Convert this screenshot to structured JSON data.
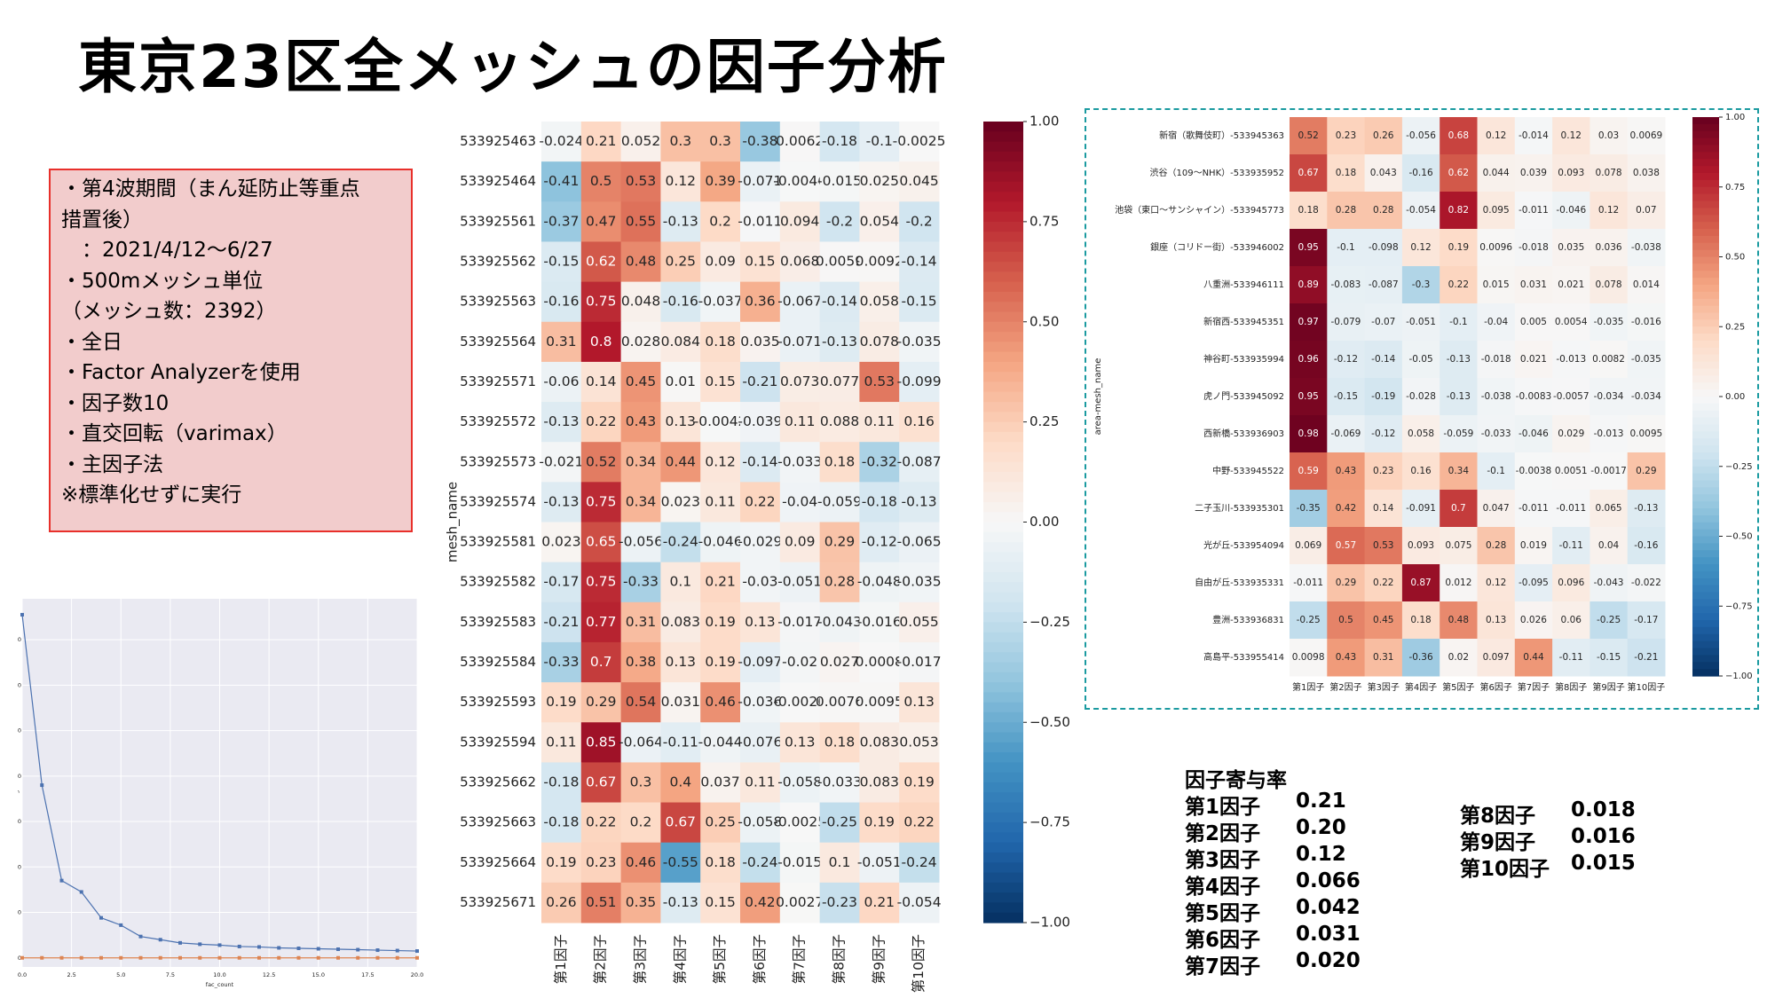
{
  "title": "東京23区全メッシュの因子分析",
  "info_box": [
    "・第4波期間（まん延防止等重点",
    "措置後）",
    "　：2021/4/12〜6/27",
    "・500mメッシュ単位",
    "（メッシュ数：2392）",
    "・全日",
    "・Factor Analyzerを使用",
    "・因子数10",
    "・直交回転（varimax）",
    "・主因子法",
    "",
    "※標準化せずに実行"
  ],
  "contribution": {
    "heading": "因子寄与率",
    "items": [
      {
        "label": "第1因子",
        "value": "0.21"
      },
      {
        "label": "第2因子",
        "value": "0.20"
      },
      {
        "label": "第3因子",
        "value": "0.12"
      },
      {
        "label": "第4因子",
        "value": "0.066"
      },
      {
        "label": "第5因子",
        "value": "0.042"
      },
      {
        "label": "第6因子",
        "value": "0.031"
      },
      {
        "label": "第7因子",
        "value": "0.020"
      },
      {
        "label": "第8因子",
        "value": "0.018"
      },
      {
        "label": "第9因子",
        "value": "0.016"
      },
      {
        "label": "第10因子",
        "value": "0.015"
      }
    ]
  },
  "chart_data": [
    {
      "type": "line",
      "xlabel": "fac_count",
      "ylabel": "eigenvalue",
      "xlim": [
        0,
        20
      ],
      "ylim": [
        -20,
        790
      ],
      "x_ticks": [
        "0.0",
        "2.5",
        "5.0",
        "7.5",
        "10.0",
        "12.5",
        "15.0",
        "17.5",
        "20.0"
      ],
      "y_ticks": [
        "0",
        "100",
        "200",
        "300",
        "400",
        "500",
        "600",
        "700"
      ],
      "grid": true,
      "series": [
        {
          "color": "#4c72b0",
          "x": [
            0,
            1,
            2,
            3,
            4,
            5,
            6,
            7,
            8,
            9,
            10,
            11,
            12,
            13,
            14,
            15,
            16,
            17,
            18,
            19,
            20
          ],
          "values": [
            755,
            380,
            170,
            145,
            88,
            72,
            47,
            40,
            33,
            30,
            28,
            25,
            24,
            22,
            21,
            20,
            19,
            18,
            17,
            16,
            15
          ]
        },
        {
          "color": "#dd8452",
          "x": [
            0,
            1,
            2,
            3,
            4,
            5,
            6,
            7,
            8,
            9,
            10,
            11,
            12,
            13,
            14,
            15,
            16,
            17,
            18,
            19,
            20
          ],
          "values": [
            0,
            0,
            0,
            0,
            0,
            0,
            0,
            0,
            0,
            0,
            0,
            0,
            0,
            0,
            0,
            0,
            0,
            0,
            0,
            0,
            0
          ]
        }
      ]
    },
    {
      "type": "heatmap",
      "ylabel": "mesh_name",
      "columns": [
        "第1因子",
        "第2因子",
        "第3因子",
        "第4因子",
        "第5因子",
        "第6因子",
        "第7因子",
        "第8因子",
        "第9因子",
        "第10因子"
      ],
      "rows": [
        "533925463",
        "533925464",
        "533925561",
        "533925562",
        "533925563",
        "533925564",
        "533925571",
        "533925572",
        "533925573",
        "533925574",
        "533925581",
        "533925582",
        "533925583",
        "533925584",
        "533925593",
        "533925594",
        "533925662",
        "533925663",
        "533925664",
        "533925671"
      ],
      "values": [
        [
          -0.024,
          0.21,
          0.052,
          0.3,
          0.3,
          -0.38,
          0.0062,
          -0.18,
          -0.1,
          -0.0025
        ],
        [
          -0.41,
          0.5,
          0.53,
          0.12,
          0.39,
          -0.071,
          -0.0046,
          -0.015,
          0.025,
          0.045
        ],
        [
          -0.37,
          0.47,
          0.55,
          -0.13,
          0.2,
          -0.011,
          0.094,
          -0.2,
          0.054,
          -0.2
        ],
        [
          -0.15,
          0.62,
          0.48,
          0.25,
          0.09,
          0.15,
          0.068,
          0.0059,
          0.0092,
          -0.14
        ],
        [
          -0.16,
          0.75,
          0.048,
          -0.16,
          -0.037,
          0.36,
          -0.067,
          -0.14,
          0.058,
          -0.15
        ],
        [
          0.31,
          0.8,
          0.028,
          0.084,
          0.18,
          0.035,
          -0.071,
          -0.13,
          0.078,
          -0.035
        ],
        [
          -0.06,
          0.14,
          0.45,
          0.01,
          0.15,
          -0.21,
          0.073,
          0.077,
          0.53,
          -0.099
        ],
        [
          -0.13,
          0.22,
          0.43,
          0.13,
          -0.0042,
          -0.039,
          0.11,
          0.088,
          0.11,
          0.16
        ],
        [
          -0.021,
          0.52,
          0.34,
          0.44,
          0.12,
          -0.14,
          -0.033,
          0.18,
          -0.32,
          -0.087
        ],
        [
          -0.13,
          0.75,
          0.34,
          0.023,
          0.11,
          0.22,
          -0.04,
          -0.059,
          -0.18,
          -0.13
        ],
        [
          0.023,
          0.65,
          -0.056,
          -0.24,
          -0.046,
          -0.029,
          0.09,
          0.29,
          -0.12,
          -0.065
        ],
        [
          -0.17,
          0.75,
          -0.33,
          0.1,
          0.21,
          -0.03,
          -0.051,
          0.28,
          -0.048,
          -0.035
        ],
        [
          -0.21,
          0.77,
          0.31,
          0.083,
          0.19,
          0.13,
          -0.017,
          -0.043,
          -0.016,
          0.055
        ],
        [
          -0.33,
          0.7,
          0.38,
          0.13,
          0.19,
          -0.097,
          -0.02,
          0.027,
          0.0008,
          -0.017
        ],
        [
          0.19,
          0.29,
          0.54,
          0.031,
          0.46,
          -0.036,
          -0.0026,
          0.0076,
          0.0095,
          0.13
        ],
        [
          0.11,
          0.85,
          -0.064,
          -0.11,
          -0.044,
          -0.076,
          0.13,
          0.18,
          0.083,
          0.053
        ],
        [
          -0.18,
          0.67,
          0.3,
          0.4,
          0.037,
          0.11,
          -0.058,
          -0.033,
          0.083,
          0.19
        ],
        [
          -0.18,
          0.22,
          0.2,
          0.67,
          0.25,
          -0.058,
          -0.0025,
          -0.25,
          0.19,
          0.22
        ],
        [
          0.19,
          0.23,
          0.46,
          -0.55,
          0.18,
          -0.24,
          -0.015,
          0.1,
          -0.051,
          -0.24
        ],
        [
          0.26,
          0.51,
          0.35,
          -0.13,
          0.15,
          0.42,
          0.0027,
          -0.23,
          0.21,
          -0.054
        ]
      ],
      "labels": [
        [
          "-0.024",
          "0.21",
          "0.052",
          "0.3",
          "0.3",
          "-0.38",
          "0.0062",
          "-0.18",
          "-0.1",
          "-0.0025"
        ],
        [
          "-0.41",
          "0.5",
          "0.53",
          "0.12",
          "0.39",
          "-0.071",
          "-0.0046",
          "-0.015",
          "0.025",
          "0.045"
        ],
        [
          "-0.37",
          "0.47",
          "0.55",
          "-0.13",
          "0.2",
          "-0.011",
          "0.094",
          "-0.2",
          "0.054",
          "-0.2"
        ],
        [
          "-0.15",
          "0.62",
          "0.48",
          "0.25",
          "0.09",
          "0.15",
          "0.068",
          "0.0059",
          "0.0092",
          "-0.14"
        ],
        [
          "-0.16",
          "0.75",
          "0.048",
          "-0.16",
          "-0.037",
          "0.36",
          "-0.067",
          "-0.14",
          "0.058",
          "-0.15"
        ],
        [
          "0.31",
          "0.8",
          "0.028",
          "0.084",
          "0.18",
          "0.035",
          "-0.071",
          "-0.13",
          "0.078",
          "-0.035"
        ],
        [
          "-0.06",
          "0.14",
          "0.45",
          "0.01",
          "0.15",
          "-0.21",
          "0.073",
          "0.077",
          "0.53",
          "-0.099"
        ],
        [
          "-0.13",
          "0.22",
          "0.43",
          "0.13",
          "-0.0042",
          "-0.039",
          "0.11",
          "0.088",
          "0.11",
          "0.16"
        ],
        [
          "-0.021",
          "0.52",
          "0.34",
          "0.44",
          "0.12",
          "-0.14",
          "-0.033",
          "0.18",
          "-0.32",
          "-0.087"
        ],
        [
          "-0.13",
          "0.75",
          "0.34",
          "0.023",
          "0.11",
          "0.22",
          "-0.04",
          "-0.059",
          "-0.18",
          "-0.13"
        ],
        [
          "0.023",
          "0.65",
          "-0.056",
          "-0.24",
          "-0.046",
          "-0.029",
          "0.09",
          "0.29",
          "-0.12",
          "-0.065"
        ],
        [
          "-0.17",
          "0.75",
          "-0.33",
          "0.1",
          "0.21",
          "-0.03",
          "-0.051",
          "0.28",
          "-0.048",
          "-0.035"
        ],
        [
          "-0.21",
          "0.77",
          "0.31",
          "0.083",
          "0.19",
          "0.13",
          "-0.017",
          "-0.043",
          "-0.016",
          "0.055"
        ],
        [
          "-0.33",
          "0.7",
          "0.38",
          "0.13",
          "0.19",
          "-0.097",
          "-0.02",
          "0.027",
          "0.0008",
          "-0.017"
        ],
        [
          "0.19",
          "0.29",
          "0.54",
          "0.031",
          "0.46",
          "-0.036",
          "-0.0026",
          "0.0076",
          "0.0095",
          "0.13"
        ],
        [
          "0.11",
          "0.85",
          "-0.064",
          "-0.11",
          "-0.044",
          "-0.076",
          "0.13",
          "0.18",
          "0.083",
          "0.053"
        ],
        [
          "-0.18",
          "0.67",
          "0.3",
          "0.4",
          "0.037",
          "0.11",
          "-0.058",
          "-0.033",
          "0.083",
          "0.19"
        ],
        [
          "-0.18",
          "0.22",
          "0.2",
          "0.67",
          "0.25",
          "-0.058",
          "-0.0025",
          "-0.25",
          "0.19",
          "0.22"
        ],
        [
          "0.19",
          "0.23",
          "0.46",
          "-0.55",
          "0.18",
          "-0.24",
          "-0.015",
          "0.1",
          "-0.051",
          "-0.24"
        ],
        [
          "0.26",
          "0.51",
          "0.35",
          "-0.13",
          "0.15",
          "0.42",
          "0.0027",
          "-0.23",
          "0.21",
          "-0.054"
        ]
      ],
      "vmin": -1.0,
      "vmax": 1.0,
      "colorbar_ticks": [
        "1.00",
        "0.75",
        "0.50",
        "0.25",
        "0.00",
        "−0.25",
        "−0.50",
        "−0.75",
        "−1.00"
      ],
      "colormap": "RdBu_r"
    },
    {
      "type": "heatmap",
      "ylabel": "area-mesh_name",
      "columns": [
        "第1因子",
        "第2因子",
        "第3因子",
        "第4因子",
        "第5因子",
        "第6因子",
        "第7因子",
        "第8因子",
        "第9因子",
        "第10因子"
      ],
      "rows": [
        "新宿（歌舞伎町）-533945363",
        "渋谷（109〜NHK）-533935952",
        "池袋（東口〜サンシャイン）-533945773",
        "銀座（コリドー街）-533946002",
        "八重洲-533946111",
        "新宿西-533945351",
        "神谷町-533935994",
        "虎ノ門-533945092",
        "西新橋-533936903",
        "中野-533945522",
        "二子玉川-533935301",
        "光が丘-533954094",
        "自由が丘-533935331",
        "豊洲-533936831",
        "高島平-533955414"
      ],
      "values": [
        [
          0.52,
          0.23,
          0.26,
          -0.056,
          0.68,
          0.12,
          -0.014,
          0.12,
          0.03,
          0.0069
        ],
        [
          0.67,
          0.18,
          0.043,
          -0.16,
          0.62,
          0.044,
          0.039,
          0.093,
          0.078,
          0.038
        ],
        [
          0.18,
          0.28,
          0.28,
          -0.054,
          0.82,
          0.095,
          -0.011,
          -0.046,
          0.12,
          0.07
        ],
        [
          0.95,
          -0.1,
          -0.098,
          0.12,
          0.19,
          0.0096,
          -0.018,
          0.035,
          0.036,
          -0.038
        ],
        [
          0.89,
          -0.083,
          -0.087,
          -0.3,
          0.22,
          0.015,
          0.031,
          0.021,
          0.078,
          0.014
        ],
        [
          0.97,
          -0.079,
          -0.07,
          -0.051,
          -0.1,
          -0.04,
          0.005,
          0.0054,
          -0.035,
          -0.016
        ],
        [
          0.96,
          -0.12,
          -0.14,
          -0.05,
          -0.13,
          -0.018,
          0.021,
          -0.013,
          0.0082,
          -0.035
        ],
        [
          0.95,
          -0.15,
          -0.19,
          -0.028,
          -0.13,
          -0.038,
          -0.0083,
          -0.0057,
          -0.034,
          -0.034
        ],
        [
          0.98,
          -0.069,
          -0.12,
          0.058,
          -0.059,
          -0.033,
          -0.046,
          0.029,
          -0.013,
          0.0095
        ],
        [
          0.59,
          0.43,
          0.23,
          0.16,
          0.34,
          -0.1,
          -0.0038,
          0.0051,
          -0.0017,
          0.29
        ],
        [
          -0.35,
          0.42,
          0.14,
          -0.091,
          0.7,
          0.047,
          -0.011,
          -0.011,
          0.065,
          -0.13
        ],
        [
          0.069,
          0.57,
          0.53,
          0.093,
          0.075,
          0.28,
          0.019,
          -0.11,
          0.04,
          -0.16
        ],
        [
          -0.011,
          0.29,
          0.22,
          0.87,
          0.012,
          0.12,
          -0.095,
          0.096,
          -0.043,
          -0.022
        ],
        [
          -0.25,
          0.5,
          0.45,
          0.18,
          0.48,
          0.13,
          0.026,
          0.06,
          -0.25,
          -0.17
        ],
        [
          0.0098,
          0.43,
          0.31,
          -0.36,
          0.02,
          0.097,
          0.44,
          -0.11,
          -0.15,
          -0.21
        ]
      ],
      "labels": [
        [
          "0.52",
          "0.23",
          "0.26",
          "-0.056",
          "0.68",
          "0.12",
          "-0.014",
          "0.12",
          "0.03",
          "0.0069"
        ],
        [
          "0.67",
          "0.18",
          "0.043",
          "-0.16",
          "0.62",
          "0.044",
          "0.039",
          "0.093",
          "0.078",
          "0.038"
        ],
        [
          "0.18",
          "0.28",
          "0.28",
          "-0.054",
          "0.82",
          "0.095",
          "-0.011",
          "-0.046",
          "0.12",
          "0.07"
        ],
        [
          "0.95",
          "-0.1",
          "-0.098",
          "0.12",
          "0.19",
          "0.0096",
          "-0.018",
          "0.035",
          "0.036",
          "-0.038"
        ],
        [
          "0.89",
          "-0.083",
          "-0.087",
          "-0.3",
          "0.22",
          "0.015",
          "0.031",
          "0.021",
          "0.078",
          "0.014"
        ],
        [
          "0.97",
          "-0.079",
          "-0.07",
          "-0.051",
          "-0.1",
          "-0.04",
          "0.005",
          "0.0054",
          "-0.035",
          "-0.016"
        ],
        [
          "0.96",
          "-0.12",
          "-0.14",
          "-0.05",
          "-0.13",
          "-0.018",
          "0.021",
          "-0.013",
          "0.0082",
          "-0.035"
        ],
        [
          "0.95",
          "-0.15",
          "-0.19",
          "-0.028",
          "-0.13",
          "-0.038",
          "-0.0083",
          "-0.0057",
          "-0.034",
          "-0.034"
        ],
        [
          "0.98",
          "-0.069",
          "-0.12",
          "0.058",
          "-0.059",
          "-0.033",
          "-0.046",
          "0.029",
          "-0.013",
          "0.0095"
        ],
        [
          "0.59",
          "0.43",
          "0.23",
          "0.16",
          "0.34",
          "-0.1",
          "-0.0038",
          "0.0051",
          "-0.0017",
          "0.29"
        ],
        [
          "-0.35",
          "0.42",
          "0.14",
          "-0.091",
          "0.7",
          "0.047",
          "-0.011",
          "-0.011",
          "0.065",
          "-0.13"
        ],
        [
          "0.069",
          "0.57",
          "0.53",
          "0.093",
          "0.075",
          "0.28",
          "0.019",
          "-0.11",
          "0.04",
          "-0.16"
        ],
        [
          "-0.011",
          "0.29",
          "0.22",
          "0.87",
          "0.012",
          "0.12",
          "-0.095",
          "0.096",
          "-0.043",
          "-0.022"
        ],
        [
          "-0.25",
          "0.5",
          "0.45",
          "0.18",
          "0.48",
          "0.13",
          "0.026",
          "0.06",
          "-0.25",
          "-0.17"
        ],
        [
          "0.0098",
          "0.43",
          "0.31",
          "-0.36",
          "0.02",
          "0.097",
          "0.44",
          "-0.11",
          "-0.15",
          "-0.21"
        ]
      ],
      "vmin": -1.0,
      "vmax": 1.0,
      "colorbar_ticks": [
        "1.00",
        "0.75",
        "0.50",
        "0.25",
        "0.00",
        "−0.25",
        "−0.50",
        "−0.75",
        "−1.00"
      ],
      "colormap": "RdBu_r"
    }
  ]
}
